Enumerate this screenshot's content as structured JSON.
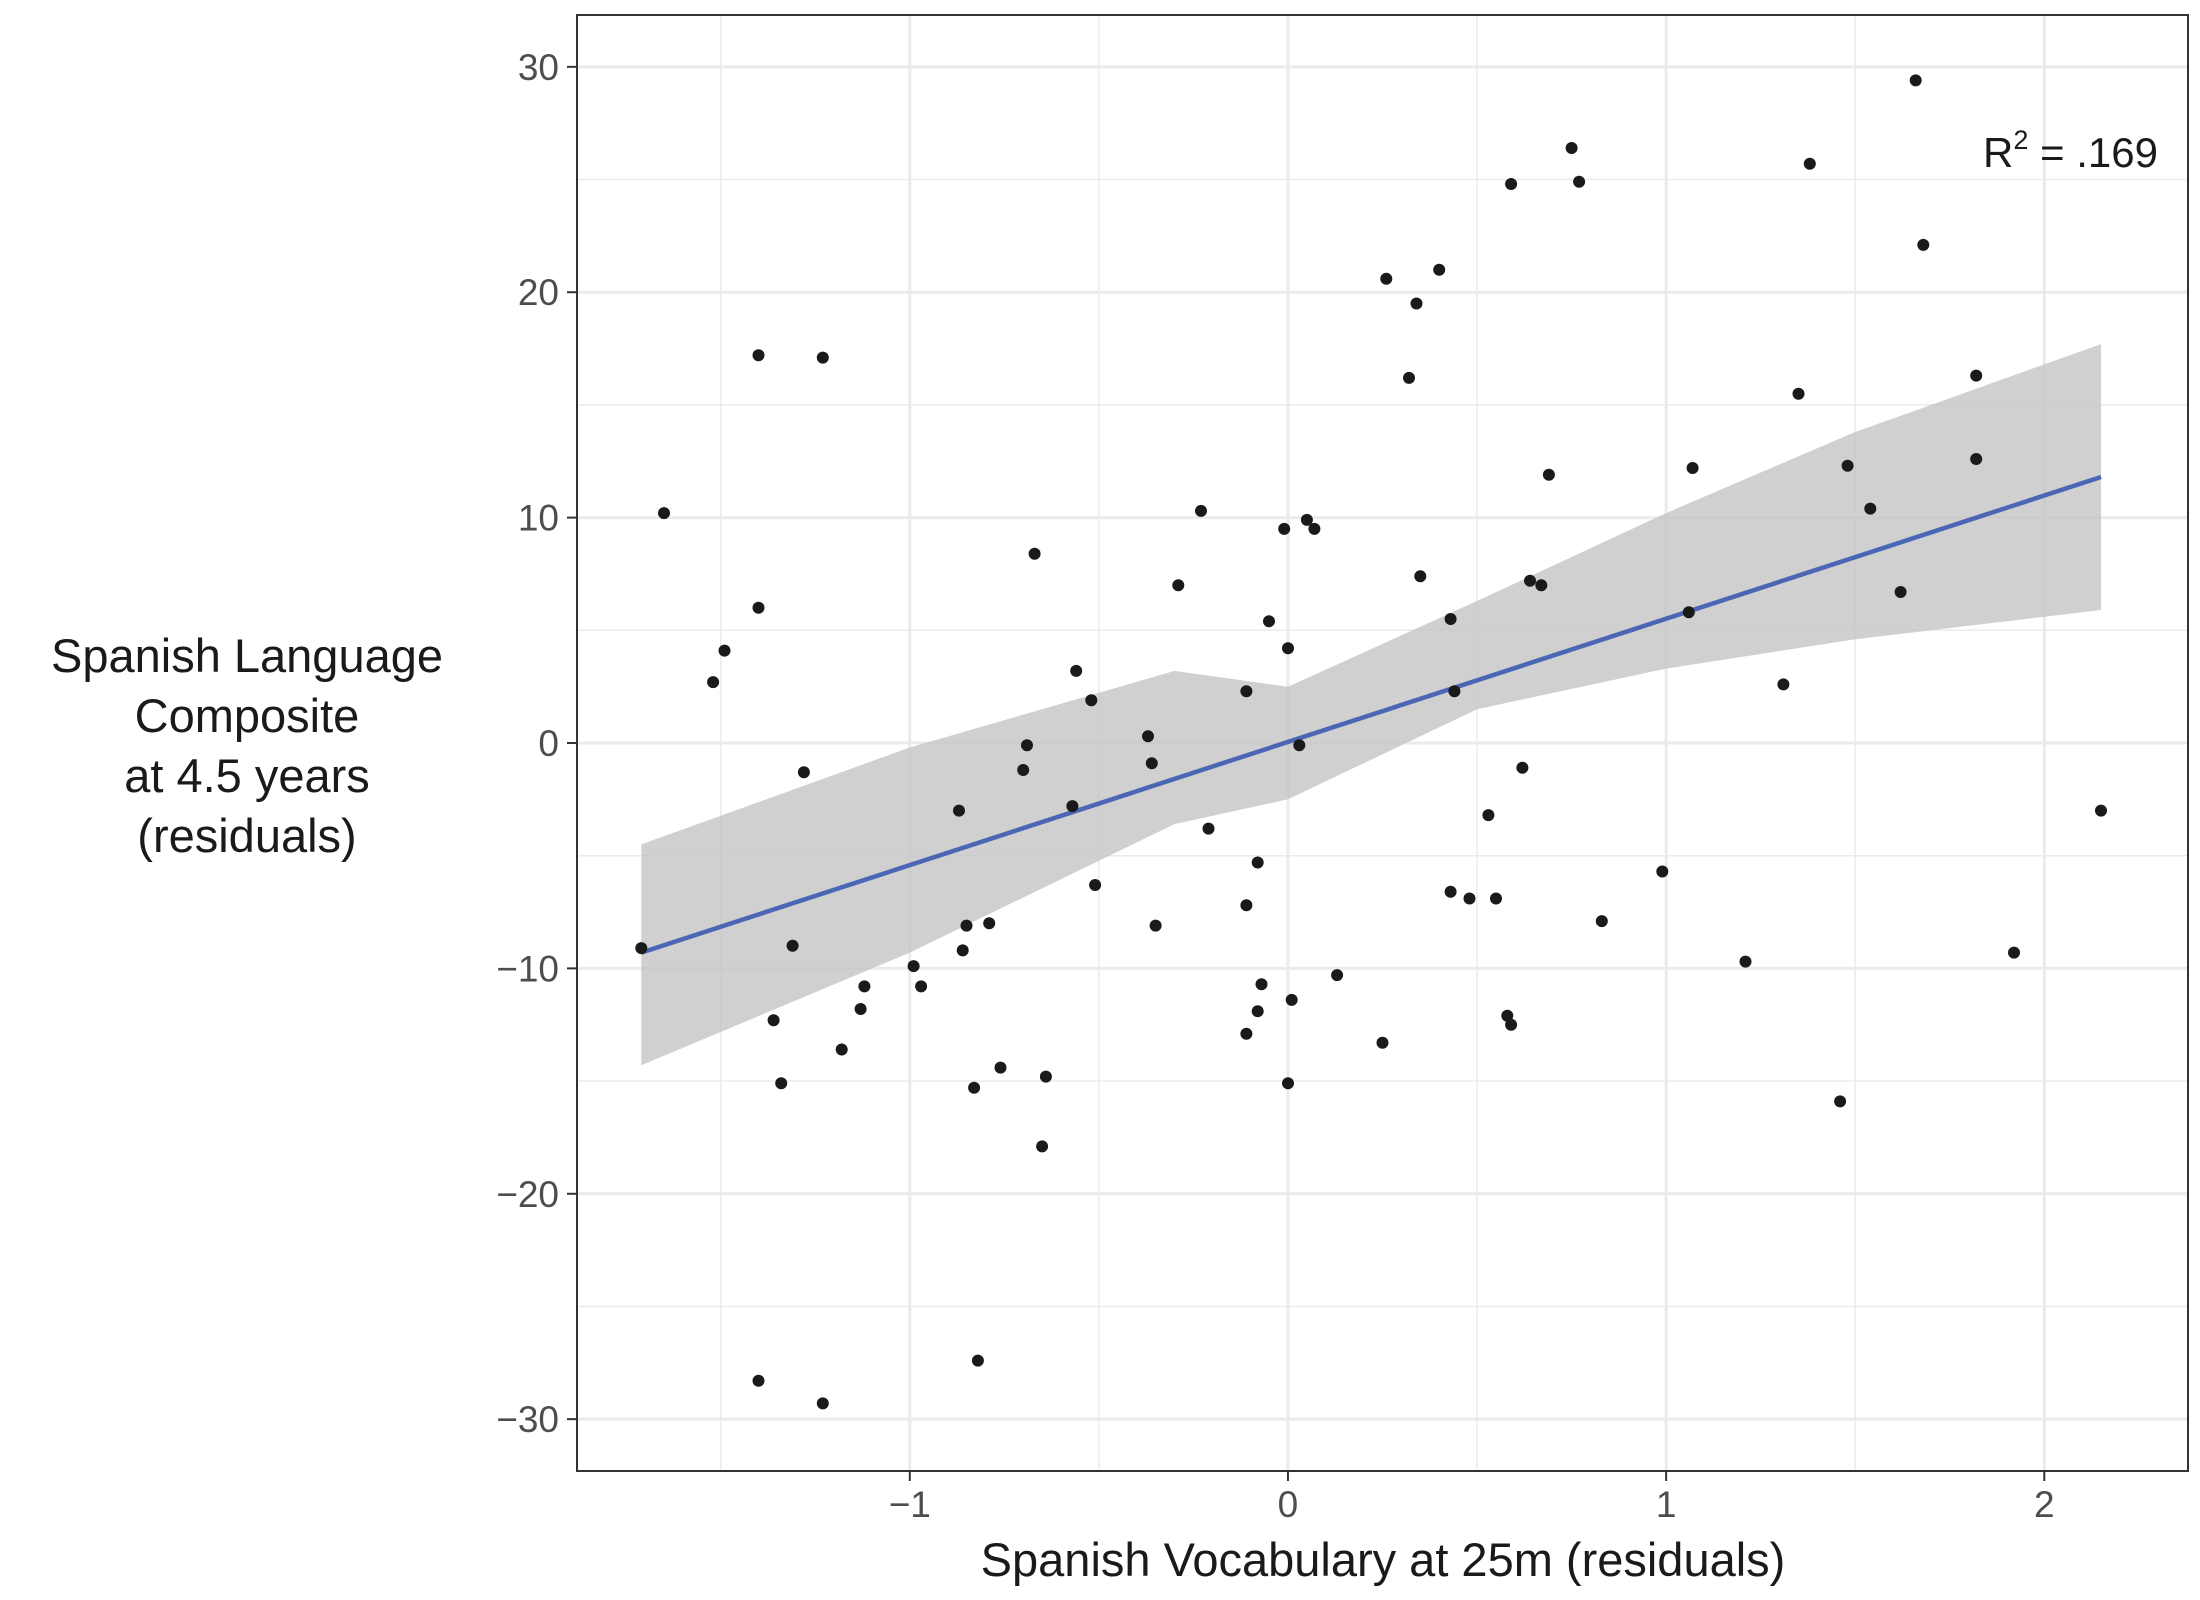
{
  "chart_data": {
    "type": "scatter",
    "xlabel": "Spanish Vocabulary at 25m (residuals)",
    "ylabel_lines": [
      "Spanish Language",
      "Composite",
      "at 4.5 years",
      "(residuals)"
    ],
    "xlim": [
      -1.88,
      2.38
    ],
    "ylim": [
      -32.3,
      32.3
    ],
    "x_ticks": [
      -1,
      0,
      1,
      2
    ],
    "x_tick_labels": [
      "−1",
      "0",
      "1",
      "2"
    ],
    "y_ticks": [
      -30,
      -20,
      -10,
      0,
      10,
      20,
      30
    ],
    "y_tick_labels": [
      "−30",
      "−20",
      "−10",
      "0",
      "10",
      "20",
      "30"
    ],
    "grid": true,
    "annotation": {
      "base": "R",
      "sup": "2",
      "rest": " = .169"
    },
    "colors": {
      "points": "#1a1a1a",
      "fit_line": "#4b66b5",
      "ribbon": "#c4c4c4",
      "grid": "#ebebeb",
      "panel_border": "#333333"
    },
    "fit_line": {
      "x": [
        -1.71,
        2.15
      ],
      "y": [
        -9.3,
        11.8
      ]
    },
    "ribbon": {
      "x": [
        -1.71,
        -1.0,
        -0.3,
        0.0,
        0.5,
        1.0,
        1.5,
        2.15
      ],
      "upper": [
        -4.5,
        -0.2,
        3.2,
        2.5,
        6.3,
        10.2,
        13.8,
        17.7
      ],
      "lower": [
        -14.3,
        -9.3,
        -3.6,
        -2.5,
        1.5,
        3.3,
        4.6,
        5.9
      ]
    },
    "points": [
      {
        "x": -1.71,
        "y": -9.1
      },
      {
        "x": -1.65,
        "y": 10.2
      },
      {
        "x": -1.52,
        "y": 2.7
      },
      {
        "x": -1.49,
        "y": 4.1
      },
      {
        "x": -1.4,
        "y": 17.2
      },
      {
        "x": -1.4,
        "y": 6.0
      },
      {
        "x": -1.4,
        "y": -28.3
      },
      {
        "x": -1.36,
        "y": -12.3
      },
      {
        "x": -1.34,
        "y": -15.1
      },
      {
        "x": -1.31,
        "y": -9.0
      },
      {
        "x": -1.28,
        "y": -1.3
      },
      {
        "x": -1.23,
        "y": 17.1
      },
      {
        "x": -1.23,
        "y": -29.3
      },
      {
        "x": -1.18,
        "y": -13.6
      },
      {
        "x": -1.13,
        "y": -11.8
      },
      {
        "x": -1.12,
        "y": -10.8
      },
      {
        "x": -0.99,
        "y": -9.9
      },
      {
        "x": -0.97,
        "y": -10.8
      },
      {
        "x": -0.87,
        "y": -3.0
      },
      {
        "x": -0.86,
        "y": -9.2
      },
      {
        "x": -0.85,
        "y": -8.1
      },
      {
        "x": -0.83,
        "y": -15.3
      },
      {
        "x": -0.82,
        "y": -27.4
      },
      {
        "x": -0.79,
        "y": -8.0
      },
      {
        "x": -0.76,
        "y": -14.4
      },
      {
        "x": -0.7,
        "y": -1.2
      },
      {
        "x": -0.69,
        "y": -0.1
      },
      {
        "x": -0.67,
        "y": 8.4
      },
      {
        "x": -0.65,
        "y": -17.9
      },
      {
        "x": -0.64,
        "y": -14.8
      },
      {
        "x": -0.57,
        "y": -2.8
      },
      {
        "x": -0.56,
        "y": 3.2
      },
      {
        "x": -0.52,
        "y": 1.9
      },
      {
        "x": -0.51,
        "y": -6.3
      },
      {
        "x": -0.37,
        "y": 0.3
      },
      {
        "x": -0.36,
        "y": -0.9
      },
      {
        "x": -0.35,
        "y": -8.1
      },
      {
        "x": -0.29,
        "y": 7.0
      },
      {
        "x": -0.23,
        "y": 10.3
      },
      {
        "x": -0.21,
        "y": -3.8
      },
      {
        "x": -0.11,
        "y": 2.3
      },
      {
        "x": -0.11,
        "y": -7.2
      },
      {
        "x": -0.11,
        "y": -12.9
      },
      {
        "x": -0.08,
        "y": -11.9
      },
      {
        "x": -0.08,
        "y": -5.3
      },
      {
        "x": -0.07,
        "y": -10.7
      },
      {
        "x": -0.05,
        "y": 5.4
      },
      {
        "x": -0.01,
        "y": 9.5
      },
      {
        "x": 0.0,
        "y": 4.2
      },
      {
        "x": 0.0,
        "y": -15.1
      },
      {
        "x": 0.01,
        "y": -11.4
      },
      {
        "x": 0.03,
        "y": -0.1
      },
      {
        "x": 0.05,
        "y": 9.9
      },
      {
        "x": 0.07,
        "y": 9.5
      },
      {
        "x": 0.13,
        "y": -10.3
      },
      {
        "x": 0.25,
        "y": -13.3
      },
      {
        "x": 0.26,
        "y": 20.6
      },
      {
        "x": 0.32,
        "y": 16.2
      },
      {
        "x": 0.34,
        "y": 19.5
      },
      {
        "x": 0.35,
        "y": 7.4
      },
      {
        "x": 0.4,
        "y": 21.0
      },
      {
        "x": 0.43,
        "y": 5.5
      },
      {
        "x": 0.43,
        "y": -6.6
      },
      {
        "x": 0.44,
        "y": 2.3
      },
      {
        "x": 0.48,
        "y": -6.9
      },
      {
        "x": 0.53,
        "y": -3.2
      },
      {
        "x": 0.55,
        "y": -6.9
      },
      {
        "x": 0.58,
        "y": -12.1
      },
      {
        "x": 0.59,
        "y": 24.8
      },
      {
        "x": 0.59,
        "y": -12.5
      },
      {
        "x": 0.62,
        "y": -1.1
      },
      {
        "x": 0.64,
        "y": 7.2
      },
      {
        "x": 0.67,
        "y": 7.0
      },
      {
        "x": 0.69,
        "y": 11.9
      },
      {
        "x": 0.75,
        "y": 26.4
      },
      {
        "x": 0.77,
        "y": 24.9
      },
      {
        "x": 0.83,
        "y": -7.9
      },
      {
        "x": 0.99,
        "y": -5.7
      },
      {
        "x": 1.06,
        "y": 5.8
      },
      {
        "x": 1.07,
        "y": 12.2
      },
      {
        "x": 1.21,
        "y": -9.7
      },
      {
        "x": 1.31,
        "y": 2.6
      },
      {
        "x": 1.35,
        "y": 15.5
      },
      {
        "x": 1.38,
        "y": 25.7
      },
      {
        "x": 1.46,
        "y": -15.9
      },
      {
        "x": 1.48,
        "y": 12.3
      },
      {
        "x": 1.54,
        "y": 10.4
      },
      {
        "x": 1.62,
        "y": 6.7
      },
      {
        "x": 1.66,
        "y": 29.4
      },
      {
        "x": 1.68,
        "y": 22.1
      },
      {
        "x": 1.82,
        "y": 16.3
      },
      {
        "x": 1.82,
        "y": 12.6
      },
      {
        "x": 1.92,
        "y": -9.3
      },
      {
        "x": 2.15,
        "y": -3.0
      }
    ]
  }
}
